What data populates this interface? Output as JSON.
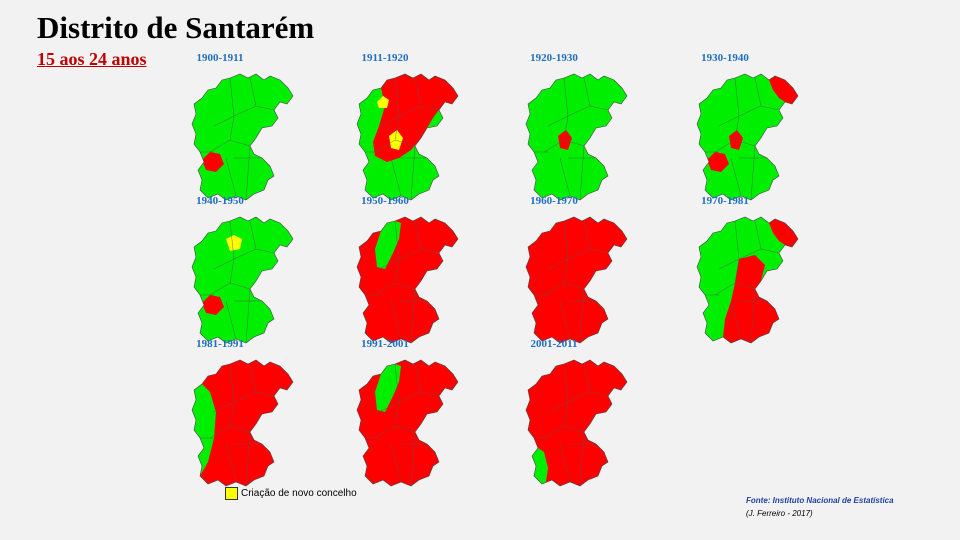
{
  "title": "Distrito de Santarém",
  "subtitle": "15 aos 24 anos",
  "colors": {
    "increase": "#ff0000",
    "decrease": "#00ee00",
    "new_municipality": "#ffff00"
  },
  "maps": [
    {
      "period": "1900-1911",
      "highlights": [
        {
          "region": "mid-left",
          "color": "red"
        }
      ]
    },
    {
      "period": "1911-1920",
      "highlights": [
        {
          "region": "upper-middle",
          "color": "red"
        },
        {
          "region": "upper-left-spot",
          "color": "yellow"
        },
        {
          "region": "center",
          "color": "yellow"
        }
      ]
    },
    {
      "period": "1920-1930",
      "highlights": [
        {
          "region": "center",
          "color": "red"
        }
      ]
    },
    {
      "period": "1930-1940",
      "highlights": [
        {
          "region": "upper-right",
          "color": "red"
        },
        {
          "region": "center",
          "color": "red"
        },
        {
          "region": "mid-left",
          "color": "red"
        }
      ]
    },
    {
      "period": "1940-1950",
      "highlights": [
        {
          "region": "upper-middle-spot",
          "color": "yellow"
        },
        {
          "region": "mid-left",
          "color": "red"
        }
      ]
    },
    {
      "period": "1950-1960",
      "highlights": [
        {
          "region": "most",
          "color": "red"
        },
        {
          "region": "northwest",
          "color": "green"
        }
      ]
    },
    {
      "period": "1960-1970",
      "highlights": [
        {
          "region": "all",
          "color": "red"
        }
      ]
    },
    {
      "period": "1970-1981",
      "highlights": [
        {
          "region": "south-center",
          "color": "red"
        },
        {
          "region": "upper-right",
          "color": "red"
        }
      ]
    },
    {
      "period": "1981-1991",
      "highlights": [
        {
          "region": "most",
          "color": "red"
        },
        {
          "region": "west",
          "color": "green"
        }
      ]
    },
    {
      "period": "1991-2001",
      "highlights": [
        {
          "region": "most",
          "color": "red"
        },
        {
          "region": "northwest",
          "color": "green"
        }
      ]
    },
    {
      "period": "2001-2011",
      "highlights": [
        {
          "region": "most",
          "color": "red"
        },
        {
          "region": "southwest",
          "color": "green"
        }
      ]
    }
  ],
  "legend": {
    "label": "Criação de novo concelho"
  },
  "source": "Fonte: Instituto Nacional de Estatística",
  "author": "(J. Ferreiro - 2017)"
}
